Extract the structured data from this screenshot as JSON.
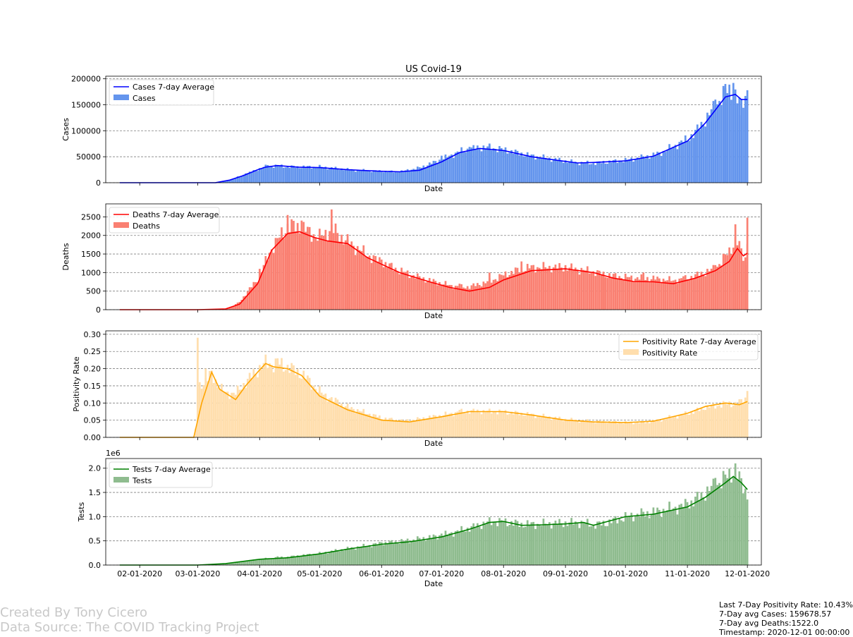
{
  "footer": {
    "created_by": "Created By Tony Cicero",
    "data_source": "Data Source: The COVID Tracking Project"
  },
  "stats": {
    "positivity": "Last 7-Day Positivity Rate: 10.43%",
    "avg_cases": "7-Day avg Cases: 159678.57",
    "avg_deaths": "7-Day avg Deaths:1522.0",
    "timestamp": "Timestamp: 2020-12-01 00:00:00"
  },
  "chart_data": [
    {
      "type": "bar",
      "title": "US Covid-19",
      "xlabel": "Date",
      "ylabel": "Cases",
      "ylim": [
        0,
        205000
      ],
      "yticks": [
        0,
        50000,
        100000,
        150000,
        200000
      ],
      "ytick_labels": [
        "0",
        "50000",
        "100000",
        "150000",
        "200000"
      ],
      "grid": "y dashed",
      "legend_position": "upper left",
      "bar_color": "#6495ed",
      "line_color": "#0000ff",
      "series": [
        {
          "name": "Cases 7-day Average",
          "kind": "line",
          "x": [
            "2020-01-22",
            "2020-02-15",
            "2020-03-01",
            "2020-03-10",
            "2020-03-17",
            "2020-03-24",
            "2020-03-31",
            "2020-04-04",
            "2020-04-10",
            "2020-04-20",
            "2020-05-01",
            "2020-05-15",
            "2020-06-01",
            "2020-06-10",
            "2020-06-20",
            "2020-07-01",
            "2020-07-10",
            "2020-07-20",
            "2020-08-01",
            "2020-08-15",
            "2020-09-01",
            "2020-09-07",
            "2020-09-15",
            "2020-10-01",
            "2020-10-15",
            "2020-11-01",
            "2020-11-10",
            "2020-11-20",
            "2020-11-25",
            "2020-11-28",
            "2020-12-01"
          ],
          "y": [
            0,
            0,
            0,
            100,
            5000,
            14000,
            25000,
            30000,
            33000,
            30000,
            29000,
            25000,
            22000,
            21000,
            24000,
            40000,
            58000,
            66000,
            62000,
            50000,
            41000,
            38000,
            39000,
            42000,
            51000,
            80000,
            115000,
            165000,
            170000,
            160000,
            160000
          ]
        },
        {
          "name": "Cases",
          "kind": "bar",
          "x": [
            "2020-03-15",
            "2020-03-25",
            "2020-04-05",
            "2020-04-15",
            "2020-05-01",
            "2020-05-20",
            "2020-06-10",
            "2020-07-01",
            "2020-07-15",
            "2020-07-25",
            "2020-08-10",
            "2020-09-01",
            "2020-09-15",
            "2020-10-01",
            "2020-10-20",
            "2020-11-05",
            "2020-11-15",
            "2020-11-20",
            "2020-11-24",
            "2020-11-27",
            "2020-12-01"
          ],
          "y": [
            3000,
            18000,
            34000,
            30000,
            33000,
            24000,
            21000,
            52000,
            69000,
            73000,
            58000,
            43000,
            35000,
            45000,
            60000,
            100000,
            160000,
            190000,
            192000,
            130000,
            178000
          ]
        }
      ]
    },
    {
      "type": "bar",
      "xlabel": "Date",
      "ylabel": "Deaths",
      "ylim": [
        0,
        2850
      ],
      "yticks": [
        0,
        500,
        1000,
        1500,
        2000,
        2500
      ],
      "ytick_labels": [
        "0",
        "500",
        "1000",
        "1500",
        "2000",
        "2500"
      ],
      "grid": "y dashed",
      "legend_position": "upper left",
      "bar_color": "#fa8072",
      "line_color": "#ff0000",
      "series": [
        {
          "name": "Deaths 7-day Average",
          "kind": "line",
          "x": [
            "2020-01-22",
            "2020-03-01",
            "2020-03-15",
            "2020-03-22",
            "2020-03-31",
            "2020-04-07",
            "2020-04-15",
            "2020-04-21",
            "2020-04-28",
            "2020-05-05",
            "2020-05-15",
            "2020-05-25",
            "2020-06-10",
            "2020-06-25",
            "2020-07-05",
            "2020-07-15",
            "2020-07-25",
            "2020-08-01",
            "2020-08-15",
            "2020-09-01",
            "2020-09-15",
            "2020-09-25",
            "2020-10-05",
            "2020-10-15",
            "2020-10-25",
            "2020-11-05",
            "2020-11-15",
            "2020-11-22",
            "2020-11-26",
            "2020-11-29",
            "2020-12-01"
          ],
          "y": [
            0,
            0,
            20,
            150,
            700,
            1600,
            2050,
            2100,
            1950,
            1850,
            1780,
            1400,
            1000,
            750,
            600,
            500,
            600,
            800,
            1050,
            1100,
            1000,
            850,
            760,
            750,
            700,
            850,
            1050,
            1300,
            1650,
            1450,
            1522
          ]
        },
        {
          "name": "Deaths",
          "kind": "bar",
          "x": [
            "2020-03-20",
            "2020-04-01",
            "2020-04-15",
            "2020-04-22",
            "2020-05-01",
            "2020-05-07",
            "2020-05-15",
            "2020-06-01",
            "2020-06-20",
            "2020-07-10",
            "2020-07-25",
            "2020-08-10",
            "2020-09-01",
            "2020-09-20",
            "2020-10-10",
            "2020-10-30",
            "2020-11-15",
            "2020-11-25",
            "2020-11-30",
            "2020-12-01"
          ],
          "y": [
            150,
            1100,
            2550,
            2400,
            2000,
            2700,
            1900,
            1350,
            900,
            700,
            1000,
            1300,
            1200,
            1000,
            1000,
            900,
            1200,
            2300,
            1200,
            2480
          ]
        }
      ]
    },
    {
      "type": "bar",
      "xlabel": "Date",
      "ylabel": "Positivity Rate",
      "ylim": [
        0,
        0.31
      ],
      "yticks": [
        0.0,
        0.05,
        0.1,
        0.15,
        0.2,
        0.25,
        0.3
      ],
      "ytick_labels": [
        "0.00",
        "0.05",
        "0.10",
        "0.15",
        "0.20",
        "0.25",
        "0.30"
      ],
      "grid": "y dashed",
      "legend_position": "upper right",
      "bar_color": "#ffdead",
      "line_color": "#ffa500",
      "series": [
        {
          "name": "Positivity Rate 7-day Average",
          "kind": "line",
          "x": [
            "2020-01-22",
            "2020-02-28",
            "2020-03-03",
            "2020-03-08",
            "2020-03-12",
            "2020-03-20",
            "2020-03-25",
            "2020-03-31",
            "2020-04-04",
            "2020-04-08",
            "2020-04-15",
            "2020-04-22",
            "2020-05-01",
            "2020-05-15",
            "2020-06-01",
            "2020-06-15",
            "2020-07-01",
            "2020-07-15",
            "2020-08-01",
            "2020-08-15",
            "2020-09-01",
            "2020-09-15",
            "2020-10-01",
            "2020-10-15",
            "2020-11-01",
            "2020-11-10",
            "2020-11-20",
            "2020-11-27",
            "2020-12-01"
          ],
          "y": [
            0,
            0,
            0.1,
            0.19,
            0.14,
            0.11,
            0.15,
            0.19,
            0.215,
            0.205,
            0.2,
            0.18,
            0.12,
            0.08,
            0.05,
            0.045,
            0.06,
            0.075,
            0.075,
            0.065,
            0.05,
            0.045,
            0.043,
            0.047,
            0.07,
            0.09,
            0.1,
            0.095,
            0.104
          ]
        },
        {
          "name": "Positivity Rate",
          "kind": "bar",
          "x": [
            "2020-03-01",
            "2020-03-05",
            "2020-03-15",
            "2020-04-01",
            "2020-04-10",
            "2020-04-25",
            "2020-05-10",
            "2020-06-10",
            "2020-07-10",
            "2020-08-10",
            "2020-09-10",
            "2020-10-10",
            "2020-11-10",
            "2020-11-25",
            "2020-12-01"
          ],
          "y": [
            0.29,
            0.2,
            0.13,
            0.21,
            0.23,
            0.18,
            0.11,
            0.05,
            0.08,
            0.07,
            0.05,
            0.04,
            0.08,
            0.1,
            0.135
          ]
        }
      ]
    },
    {
      "type": "bar",
      "xlabel": "Date",
      "ylabel": "Tests",
      "axis_multiplier": "1e6",
      "ylim": [
        0,
        2200000
      ],
      "yticks": [
        0,
        500000,
        1000000,
        1500000,
        2000000
      ],
      "ytick_labels": [
        "0.0",
        "0.5",
        "1.0",
        "1.5",
        "2.0"
      ],
      "xtick_labels": [
        "02-01-2020",
        "03-01-2020",
        "04-01-2020",
        "05-01-2020",
        "06-01-2020",
        "07-01-2020",
        "08-01-2020",
        "09-01-2020",
        "10-01-2020",
        "11-01-2020",
        "12-01-2020"
      ],
      "grid": "y dashed",
      "legend_position": "upper left",
      "bar_color": "#8fbc8f",
      "line_color": "#008000",
      "series": [
        {
          "name": "Tests 7-day Average",
          "kind": "line",
          "x": [
            "2020-01-22",
            "2020-03-01",
            "2020-03-15",
            "2020-04-01",
            "2020-04-15",
            "2020-05-01",
            "2020-05-15",
            "2020-06-01",
            "2020-06-15",
            "2020-07-01",
            "2020-07-15",
            "2020-07-25",
            "2020-08-01",
            "2020-08-10",
            "2020-08-20",
            "2020-09-01",
            "2020-09-10",
            "2020-09-15",
            "2020-10-01",
            "2020-10-15",
            "2020-11-01",
            "2020-11-10",
            "2020-11-20",
            "2020-11-24",
            "2020-11-28",
            "2020-12-01"
          ],
          "y": [
            0,
            0,
            30000,
            120000,
            150000,
            230000,
            330000,
            430000,
            480000,
            580000,
            740000,
            880000,
            900000,
            820000,
            830000,
            850000,
            880000,
            820000,
            1000000,
            1050000,
            1200000,
            1400000,
            1700000,
            1830000,
            1700000,
            1560000
          ]
        },
        {
          "name": "Tests",
          "kind": "bar",
          "x": [
            "2020-03-20",
            "2020-04-10",
            "2020-05-01",
            "2020-06-01",
            "2020-07-01",
            "2020-07-25",
            "2020-08-15",
            "2020-09-01",
            "2020-09-20",
            "2020-10-10",
            "2020-11-01",
            "2020-11-15",
            "2020-11-25",
            "2020-12-01"
          ],
          "y": [
            60000,
            180000,
            260000,
            470000,
            650000,
            900000,
            870000,
            900000,
            820000,
            1100000,
            1300000,
            1800000,
            2100000,
            1300000
          ]
        }
      ]
    }
  ]
}
